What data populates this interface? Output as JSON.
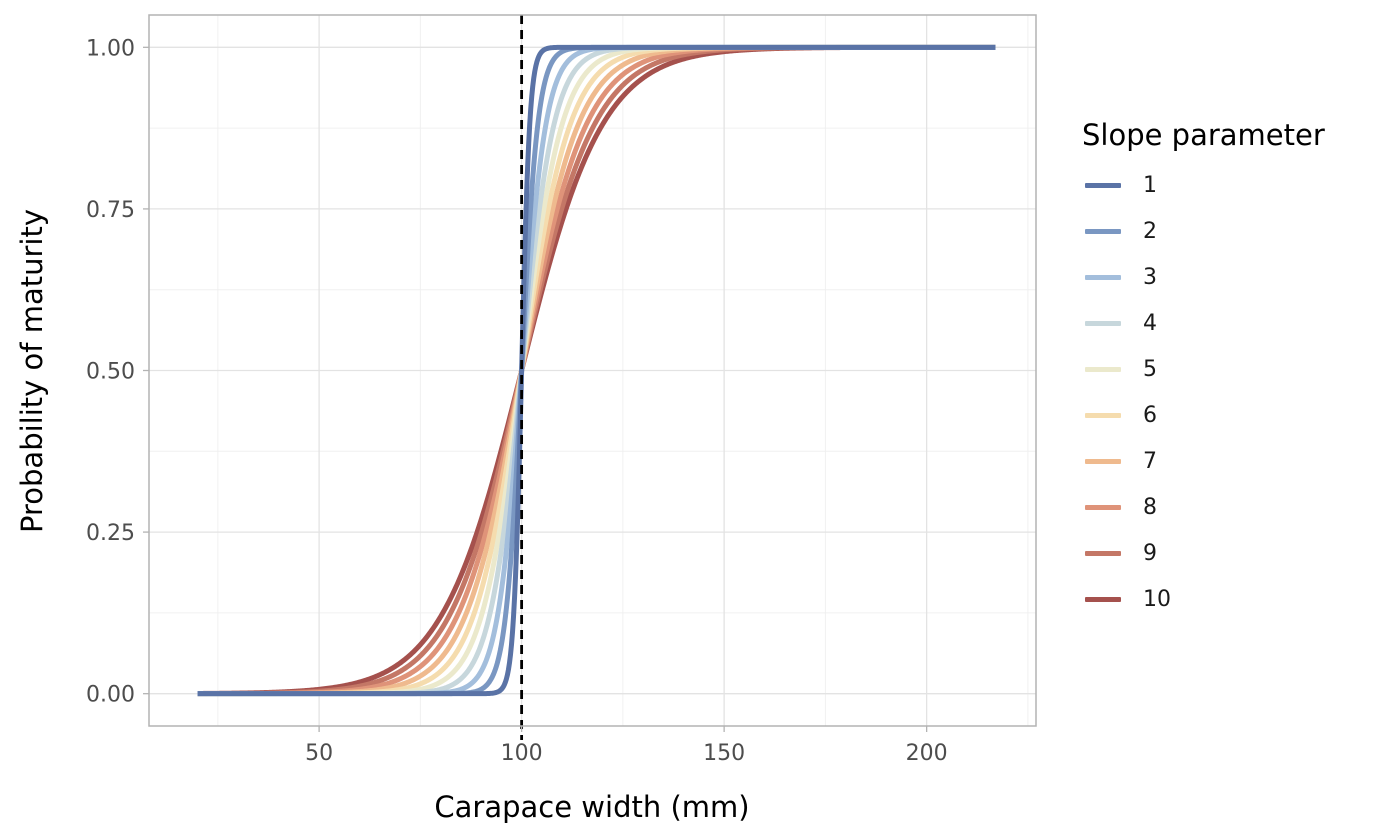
{
  "chart_data": {
    "type": "line",
    "xlabel": "Carapace width (mm)",
    "ylabel": "Probability of maturity",
    "xlim": [
      8,
      227
    ],
    "ylim": [
      -0.05,
      1.05
    ],
    "x_ticks": [
      50,
      100,
      150,
      200
    ],
    "x_tick_labels": [
      "50",
      "100",
      "150",
      "200"
    ],
    "y_ticks": [
      0,
      0.25,
      0.5,
      0.75,
      1.0
    ],
    "y_tick_labels": [
      "0.00",
      "0.25",
      "0.50",
      "0.75",
      "1.00"
    ],
    "grid": true,
    "reference_line": {
      "x": 100,
      "style": "dashed"
    },
    "x_range": [
      20,
      217
    ],
    "midpoint": 100,
    "legend": {
      "title": "Slope parameter",
      "placement": "right"
    },
    "series": [
      {
        "name": "1",
        "slope": 1,
        "color": "#5a73a6"
      },
      {
        "name": "2",
        "slope": 2,
        "color": "#7a97c2"
      },
      {
        "name": "3",
        "slope": 3,
        "color": "#a3bedc"
      },
      {
        "name": "4",
        "slope": 4,
        "color": "#c7d7dc"
      },
      {
        "name": "5",
        "slope": 5,
        "color": "#ebe9cc"
      },
      {
        "name": "6",
        "slope": 6,
        "color": "#f5dcae"
      },
      {
        "name": "7",
        "slope": 7,
        "color": "#efba8e"
      },
      {
        "name": "8",
        "slope": 8,
        "color": "#df9379"
      },
      {
        "name": "9",
        "slope": 9,
        "color": "#c47766"
      },
      {
        "name": "10",
        "slope": 10,
        "color": "#a5514d"
      }
    ]
  }
}
